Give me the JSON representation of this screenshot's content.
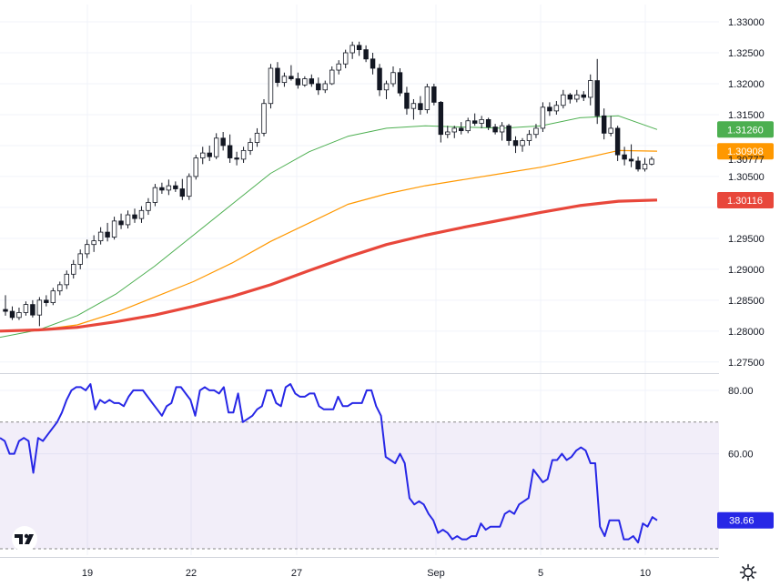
{
  "chart_data": [
    {
      "type": "candlestick",
      "title": "",
      "x_tick_labels": [
        "19",
        "22",
        "27",
        "Sep",
        "5",
        "10"
      ],
      "y_tick_labels": [
        "1.33000",
        "1.32500",
        "1.32000",
        "1.31500",
        "1.30500",
        "1.29500",
        "1.29000",
        "1.28500",
        "1.28000",
        "1.27500"
      ],
      "ylim": [
        1.2735,
        1.3328
      ],
      "grid": true,
      "ohlc": [
        [
          1.2835,
          1.2858,
          1.2825,
          1.2832
        ],
        [
          1.2832,
          1.284,
          1.2818,
          1.2822
        ],
        [
          1.2822,
          1.2838,
          1.2818,
          1.283
        ],
        [
          1.283,
          1.2848,
          1.2825,
          1.2843
        ],
        [
          1.2843,
          1.285,
          1.2822,
          1.2826
        ],
        [
          1.2826,
          1.2855,
          1.2808,
          1.285
        ],
        [
          1.285,
          1.2858,
          1.284,
          1.2846
        ],
        [
          1.2846,
          1.287,
          1.2842,
          1.2865
        ],
        [
          1.2865,
          1.288,
          1.2858,
          1.2875
        ],
        [
          1.2875,
          1.2898,
          1.2868,
          1.2892
        ],
        [
          1.2892,
          1.2915,
          1.2885,
          1.2908
        ],
        [
          1.2908,
          1.2932,
          1.29,
          1.2925
        ],
        [
          1.2925,
          1.2948,
          1.2918,
          1.294
        ],
        [
          1.294,
          1.2955,
          1.2928,
          1.2946
        ],
        [
          1.2946,
          1.2968,
          1.294,
          1.296
        ],
        [
          1.296,
          1.2975,
          1.2945,
          1.2952
        ],
        [
          1.2952,
          1.2985,
          1.2948,
          1.2978
        ],
        [
          1.2978,
          1.299,
          1.2965,
          1.2972
        ],
        [
          1.2972,
          1.2995,
          1.2966,
          1.2988
        ],
        [
          1.2988,
          1.2998,
          1.2975,
          1.2982
        ],
        [
          1.2982,
          1.3002,
          1.2975,
          1.2995
        ],
        [
          1.2995,
          1.3015,
          1.2988,
          1.3008
        ],
        [
          1.3008,
          1.3038,
          1.3002,
          1.3032
        ],
        [
          1.3032,
          1.304,
          1.3022,
          1.3028
        ],
        [
          1.3028,
          1.3045,
          1.302,
          1.3035
        ],
        [
          1.3035,
          1.3042,
          1.3025,
          1.303
        ],
        [
          1.303,
          1.3046,
          1.3012,
          1.3018
        ],
        [
          1.3018,
          1.3055,
          1.3012,
          1.305
        ],
        [
          1.305,
          1.3085,
          1.3045,
          1.308
        ],
        [
          1.308,
          1.3098,
          1.307,
          1.3088
        ],
        [
          1.3088,
          1.31,
          1.3075,
          1.3082
        ],
        [
          1.3082,
          1.312,
          1.3078,
          1.3112
        ],
        [
          1.3112,
          1.3122,
          1.3092,
          1.31
        ],
        [
          1.31,
          1.3118,
          1.3072,
          1.308
        ],
        [
          1.308,
          1.309,
          1.3068,
          1.3078
        ],
        [
          1.3078,
          1.3098,
          1.3072,
          1.3092
        ],
        [
          1.3092,
          1.3112,
          1.3085,
          1.3105
        ],
        [
          1.3105,
          1.3128,
          1.3098,
          1.312
        ],
        [
          1.312,
          1.3175,
          1.3115,
          1.3168
        ],
        [
          1.3168,
          1.3232,
          1.316,
          1.3225
        ],
        [
          1.3225,
          1.3235,
          1.3195,
          1.3202
        ],
        [
          1.3202,
          1.3218,
          1.3195,
          1.3212
        ],
        [
          1.3212,
          1.323,
          1.3205,
          1.3208
        ],
        [
          1.3208,
          1.3218,
          1.3192,
          1.3198
        ],
        [
          1.3198,
          1.3212,
          1.3195,
          1.3208
        ],
        [
          1.3208,
          1.3215,
          1.3195,
          1.32
        ],
        [
          1.32,
          1.321,
          1.3182,
          1.319
        ],
        [
          1.319,
          1.3205,
          1.3185,
          1.32
        ],
        [
          1.32,
          1.3228,
          1.3198,
          1.3222
        ],
        [
          1.3222,
          1.3238,
          1.3215,
          1.3232
        ],
        [
          1.3232,
          1.3255,
          1.3225,
          1.325
        ],
        [
          1.325,
          1.3268,
          1.324,
          1.3262
        ],
        [
          1.3262,
          1.3268,
          1.3245,
          1.3255
        ],
        [
          1.3255,
          1.3262,
          1.3235,
          1.324
        ],
        [
          1.324,
          1.325,
          1.3215,
          1.3225
        ],
        [
          1.3225,
          1.3232,
          1.318,
          1.319
        ],
        [
          1.319,
          1.3205,
          1.3175,
          1.32
        ],
        [
          1.32,
          1.3228,
          1.3195,
          1.3218
        ],
        [
          1.3218,
          1.3225,
          1.318,
          1.3185
        ],
        [
          1.3185,
          1.3195,
          1.315,
          1.316
        ],
        [
          1.316,
          1.3175,
          1.3142,
          1.3168
        ],
        [
          1.3168,
          1.318,
          1.315,
          1.3158
        ],
        [
          1.3158,
          1.32,
          1.3152,
          1.3195
        ],
        [
          1.3195,
          1.32,
          1.3165,
          1.317
        ],
        [
          1.317,
          1.3172,
          1.3105,
          1.3118
        ],
        [
          1.3118,
          1.3132,
          1.3112,
          1.3122
        ],
        [
          1.3122,
          1.3132,
          1.3112,
          1.3128
        ],
        [
          1.3128,
          1.3138,
          1.3118,
          1.3124
        ],
        [
          1.3124,
          1.3145,
          1.312,
          1.314
        ],
        [
          1.314,
          1.3152,
          1.3132,
          1.3136
        ],
        [
          1.3136,
          1.3148,
          1.3128,
          1.3142
        ],
        [
          1.3142,
          1.3145,
          1.3125,
          1.313
        ],
        [
          1.313,
          1.3135,
          1.3118,
          1.3122
        ],
        [
          1.3122,
          1.3138,
          1.3108,
          1.3132
        ],
        [
          1.3132,
          1.3135,
          1.31,
          1.3108
        ],
        [
          1.3108,
          1.3115,
          1.3088,
          1.31
        ],
        [
          1.31,
          1.3112,
          1.309,
          1.3108
        ],
        [
          1.3108,
          1.3125,
          1.31,
          1.3118
        ],
        [
          1.3118,
          1.3135,
          1.3112,
          1.3128
        ],
        [
          1.3128,
          1.317,
          1.3122,
          1.3162
        ],
        [
          1.3162,
          1.317,
          1.3148,
          1.3156
        ],
        [
          1.3156,
          1.3172,
          1.315,
          1.3165
        ],
        [
          1.3165,
          1.319,
          1.316,
          1.3182
        ],
        [
          1.3182,
          1.3185,
          1.3168,
          1.3175
        ],
        [
          1.3175,
          1.319,
          1.317,
          1.3182
        ],
        [
          1.3182,
          1.3188,
          1.3172,
          1.3178
        ],
        [
          1.3178,
          1.3215,
          1.3165,
          1.3205
        ],
        [
          1.3205,
          1.324,
          1.3135,
          1.3148
        ],
        [
          1.3148,
          1.316,
          1.311,
          1.312
        ],
        [
          1.312,
          1.3148,
          1.3115,
          1.3128
        ],
        [
          1.3128,
          1.3132,
          1.3075,
          1.3085
        ],
        [
          1.3085,
          1.3098,
          1.3068,
          1.3078
        ],
        [
          1.3078,
          1.3102,
          1.3065,
          1.3075
        ],
        [
          1.3075,
          1.3082,
          1.3058,
          1.3062
        ],
        [
          1.3062,
          1.308,
          1.3058,
          1.307
        ],
        [
          1.307,
          1.3082,
          1.3068,
          1.3078
        ]
      ],
      "moving_averages": [
        {
          "color": "#4caf50",
          "values": [
            1.279,
            1.2802,
            1.2825,
            1.286,
            1.2905,
            1.2955,
            1.3005,
            1.3055,
            1.309,
            1.3115,
            1.3128,
            1.3132,
            1.313,
            1.3128,
            1.3132,
            1.3145,
            1.3148,
            1.3126
          ]
        },
        {
          "color": "#ff9800",
          "values": [
            1.28,
            1.2802,
            1.281,
            1.283,
            1.2855,
            1.288,
            1.291,
            1.2945,
            1.2975,
            1.3005,
            1.3022,
            1.3035,
            1.3045,
            1.3055,
            1.3065,
            1.3078,
            1.3092,
            1.3091
          ]
        },
        {
          "color": "#e8473b",
          "values": [
            1.28,
            1.2802,
            1.2806,
            1.2815,
            1.2826,
            1.284,
            1.2856,
            1.2875,
            1.2898,
            1.292,
            1.294,
            1.2955,
            1.2968,
            1.298,
            1.2992,
            1.3003,
            1.301,
            1.3012
          ]
        }
      ],
      "price_labels": [
        {
          "text": "1.31260",
          "value": 1.3126,
          "color": "#4caf50"
        },
        {
          "text": "1.30908",
          "value": 1.30908,
          "color": "#ff9800"
        },
        {
          "text": "1.30777",
          "value": 1.30777,
          "color": ""
        },
        {
          "text": "1.30116",
          "value": 1.30116,
          "color": "#e8473b"
        }
      ]
    },
    {
      "type": "line",
      "title": "",
      "y_tick_labels": [
        "80.00",
        "60.00"
      ],
      "ylim": [
        28,
        84
      ],
      "band": [
        30,
        70
      ],
      "series": [
        {
          "color": "#2727e6",
          "values": [
            65,
            64,
            60,
            60,
            64,
            65,
            64,
            54,
            65,
            64,
            66,
            68,
            70,
            73,
            77,
            80,
            81,
            81,
            80,
            82,
            74,
            77,
            76,
            77,
            76,
            76,
            75,
            78,
            80,
            80,
            80,
            78,
            76,
            74,
            72,
            75,
            76,
            81,
            81,
            79,
            77,
            72,
            80,
            81,
            80,
            80,
            79,
            81,
            73,
            73,
            79,
            70,
            71,
            72,
            74,
            75,
            80,
            80,
            76,
            75,
            81,
            82,
            79,
            78,
            78,
            79,
            79,
            75,
            74,
            74,
            74,
            78,
            75,
            75,
            76,
            76,
            76,
            80,
            80,
            75,
            72,
            59,
            58,
            57,
            60,
            57,
            46,
            44,
            45,
            44,
            41,
            39,
            35,
            36,
            35,
            33,
            34,
            33,
            33,
            34,
            34,
            38,
            36,
            37,
            37,
            37,
            41,
            42,
            41,
            44,
            45,
            46,
            55,
            53,
            51,
            52,
            58,
            58,
            60,
            58,
            59,
            61,
            62,
            61,
            57,
            57,
            37,
            34,
            39,
            39,
            39,
            33,
            33,
            34,
            32,
            38,
            37,
            40,
            39
          ]
        }
      ],
      "last_value_label": "38.66"
    }
  ],
  "ui": {
    "accent": "#2727e6",
    "settings_icon": "gear-icon",
    "logo": "tradingview-logo"
  }
}
